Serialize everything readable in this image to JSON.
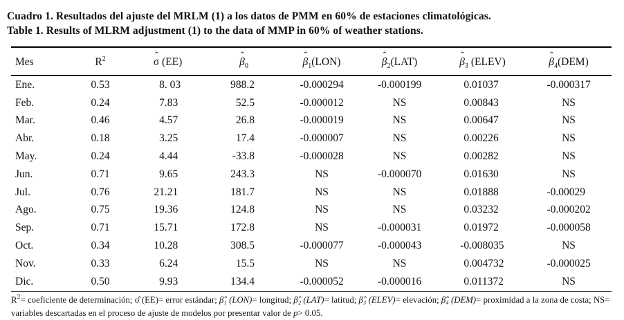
{
  "caption": {
    "line1_es": "Cuadro 1. Resultados del ajuste del MRLM (1) a los datos de PMM en 60% de estaciones climatológicas.",
    "line2_en": "Table 1. Results of MLRM adjustment (1) to the data of MMP in 60% of weather stations."
  },
  "table": {
    "columns": [
      {
        "label": "Mes"
      },
      {
        "base": "R",
        "sup": "2"
      },
      {
        "base": "σ",
        "hat": true,
        "rest": " (EE)"
      },
      {
        "base": "β",
        "hat": true,
        "it": true,
        "sub": "0"
      },
      {
        "base": "β",
        "hat": true,
        "it": true,
        "sub": "1",
        "rest": "(LON)"
      },
      {
        "base": "β",
        "hat": true,
        "it": true,
        "sub": "2",
        "rest": "(LAT)"
      },
      {
        "base": "β",
        "hat": true,
        "it": true,
        "sub": "3",
        "rest": " (ELEV)"
      },
      {
        "base": "β",
        "hat": true,
        "it": true,
        "sub": "4",
        "rest": "(DEM)"
      }
    ],
    "rows": [
      [
        "Ene.",
        "0.53",
        "8. 03",
        "988.2",
        "-0.000294",
        "-0.000199",
        "0.01037",
        "-0.000317"
      ],
      [
        "Feb.",
        "0.24",
        "7.83",
        "52.5",
        "-0.000012",
        "NS",
        "0.00843",
        "NS"
      ],
      [
        "Mar.",
        "0.46",
        "4.57",
        "26.8",
        "-0.000019",
        "NS",
        "0.00647",
        "NS"
      ],
      [
        "Abr.",
        "0.18",
        "3.25",
        "17.4",
        "-0.000007",
        "NS",
        "0.00226",
        "NS"
      ],
      [
        "May.",
        "0.24",
        "4.44",
        "-33.8",
        "-0.000028",
        "NS",
        "0.00282",
        "NS"
      ],
      [
        "Jun.",
        "0.71",
        "9.65",
        "243.3",
        "NS",
        "-0.000070",
        "0.01630",
        "NS"
      ],
      [
        "Jul.",
        "0.76",
        "21.21",
        "181.7",
        "NS",
        "NS",
        "0.01888",
        "-0.00029"
      ],
      [
        "Ago.",
        "0.75",
        "19.36",
        "124.8",
        "NS",
        "NS",
        "0.03232",
        "-0.000202"
      ],
      [
        "Sep.",
        "0.71",
        "15.71",
        "172.8",
        "NS",
        "-0.000031",
        "0.01972",
        "-0.000058"
      ],
      [
        "Oct.",
        "0.34",
        "10.28",
        "308.5",
        "-0.000077",
        "-0.000043",
        "-0.008035",
        "NS"
      ],
      [
        "Nov.",
        "0.33",
        "6.24",
        "15.5",
        "NS",
        "NS",
        "0.004732",
        "-0.000025"
      ],
      [
        "Dic.",
        "0.50",
        "9.93",
        "134.4",
        "-0.000052",
        "-0.000016",
        "0.011372",
        "NS"
      ]
    ]
  },
  "footnote": {
    "line1": [
      {
        "t": "R"
      },
      {
        "t": "2",
        "s": "sup"
      },
      {
        "t": "= coeficiente de determinación; σ̂ (EE)= error estándar; "
      },
      {
        "t": "β̂₁ (LON)",
        "s": "i"
      },
      {
        "t": "= longitud; "
      },
      {
        "t": "β̂₂ (LAT)",
        "s": "i"
      },
      {
        "t": "= latitud; "
      },
      {
        "t": "β̂₃ (ELEV)",
        "s": "i"
      },
      {
        "t": "= elevación; "
      },
      {
        "t": "β̂₄ (DEM)",
        "s": "i"
      },
      {
        "t": "= proximidad a la zona de costa; NS="
      }
    ],
    "line2": [
      {
        "t": "variables descartadas en el proceso de ajuste de modelos por presentar valor de "
      },
      {
        "t": "p",
        "s": "i"
      },
      {
        "t": "> 0.05."
      }
    ]
  }
}
